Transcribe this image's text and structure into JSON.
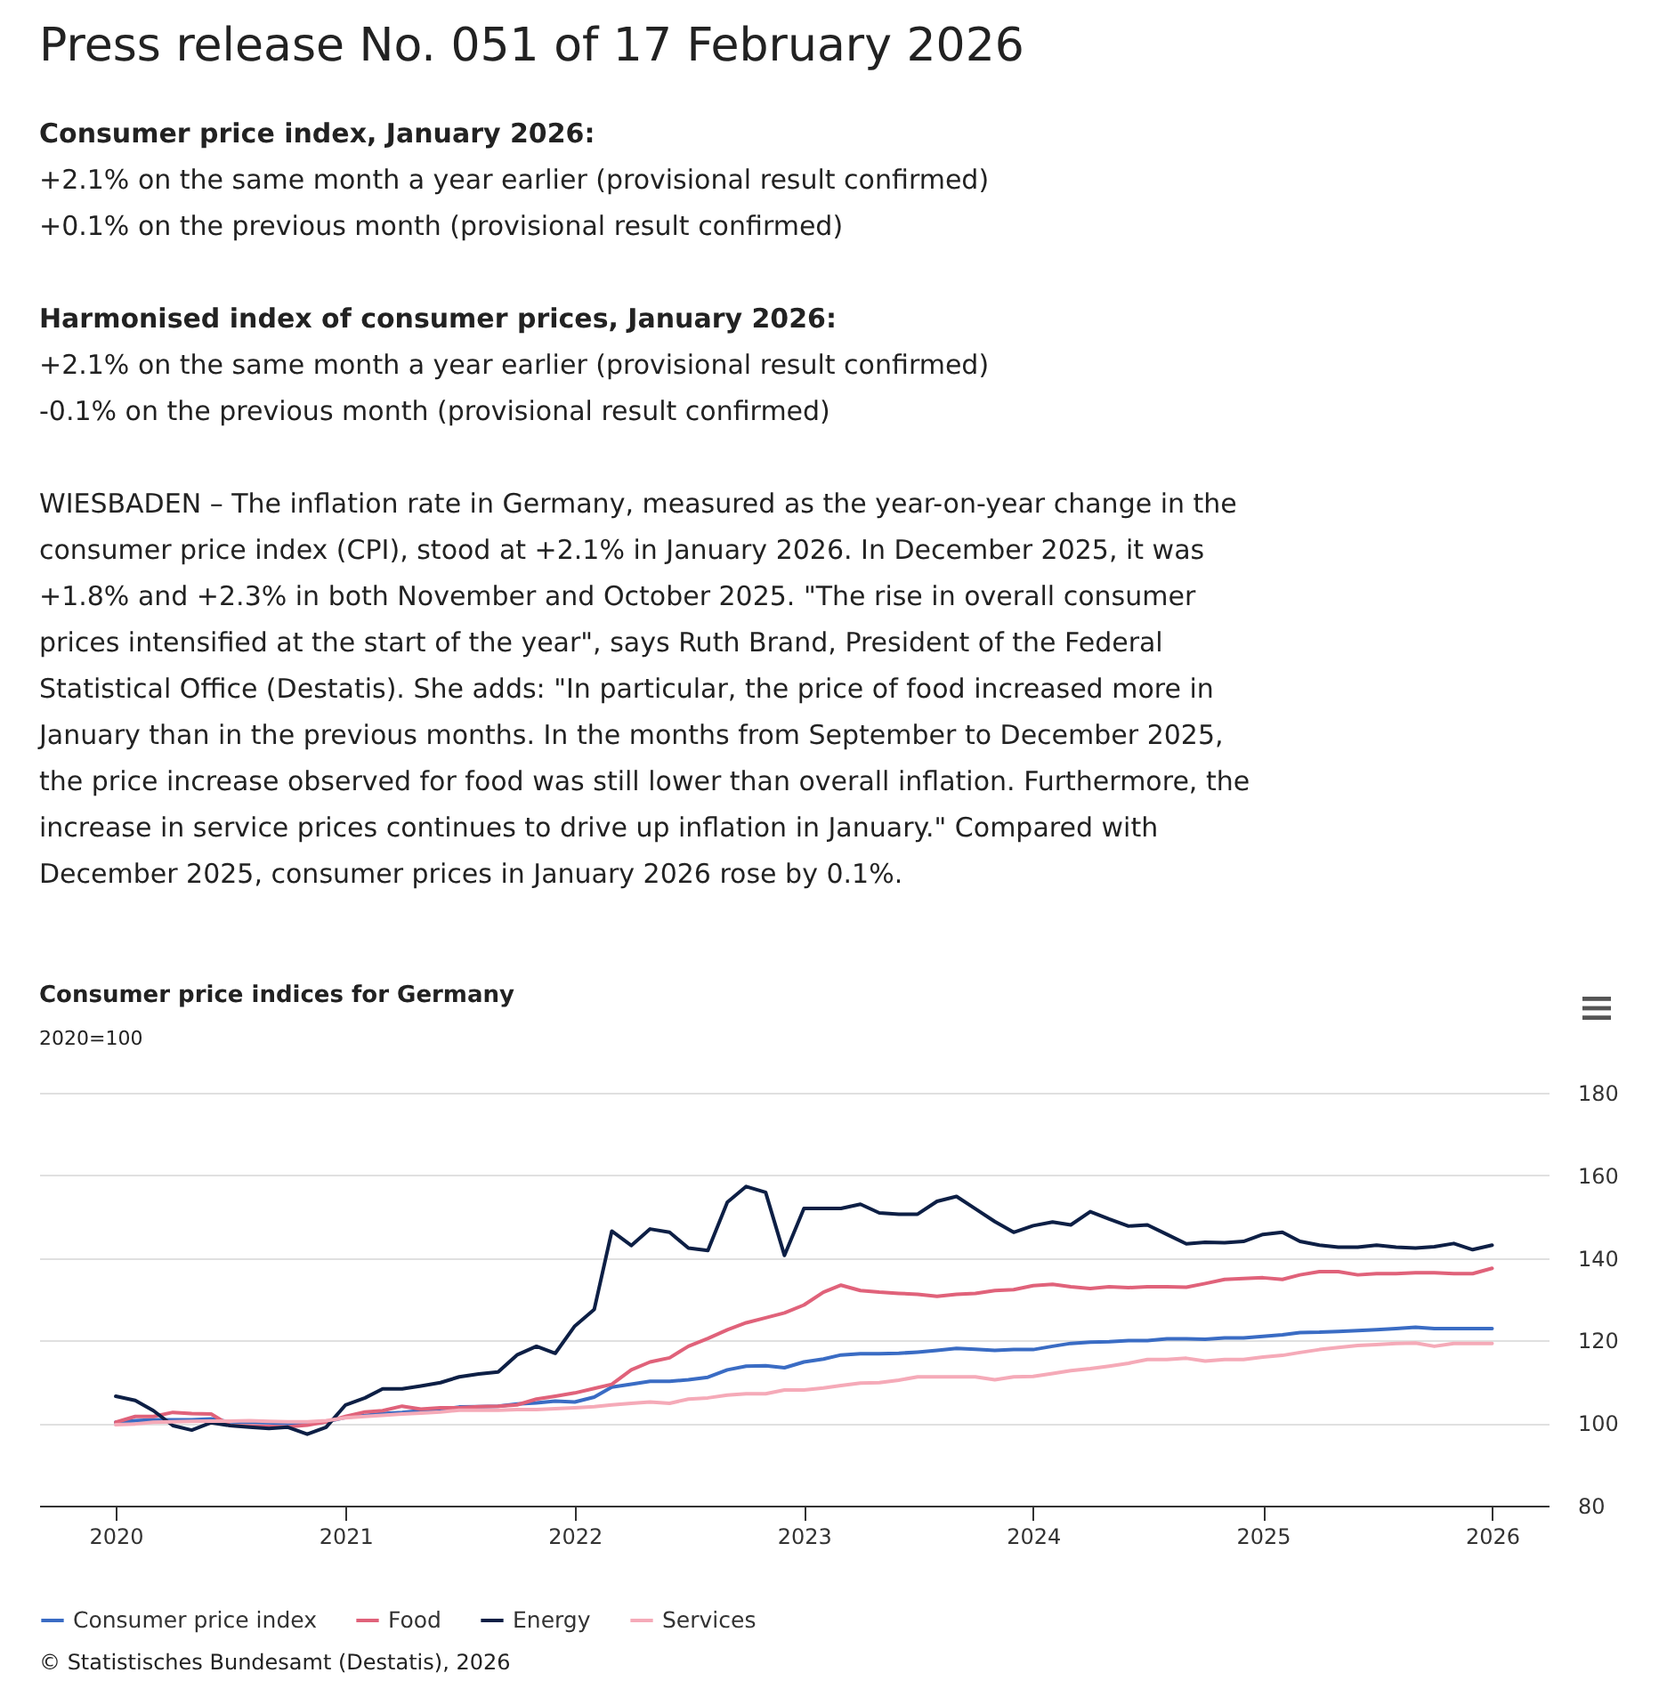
{
  "chart_data": {
    "type": "line",
    "title": "Consumer price indices for Germany",
    "subtitle": "2020=100",
    "annotations": [
      "Press release No. 051 of 17 February 2026",
      "Consumer price index, January 2026:",
      "+2.1% on the same month a year earlier (provisional result confirmed)",
      "+0.1% on the previous month (provisional result confirmed)",
      "Harmonised index of consumer prices, January 2026:",
      "+2.1% on the same month a year earlier (provisional result confirmed)",
      "-0.1% on the previous month (provisional result confirmed)",
      "WIESBADEN – The inflation rate in Germany, measured as the year-on-year change in the consumer price index (CPI), stood at +2.1% in January 2026. In December 2025, it was +1.8% and +2.3% in both November and October 2025. \"The rise in overall consumer prices intensified at the start of the year\", says Ruth Brand, President of the Federal Statistical Office (Destatis). She adds: \"In particular, the price of food increased more in January than in the previous months. In the months from September to December 2025, the price increase observed for food was still lower than overall inflation. Furthermore, the increase in service prices continues to drive up inflation in January.\" Compared with December 2025, consumer prices in January 2026 rose by 0.1%.",
      "© Statistisches Bundesamt (Destatis), 2026"
    ],
    "x": [
      "2020-01",
      "2020-02",
      "2020-03",
      "2020-04",
      "2020-05",
      "2020-06",
      "2020-07",
      "2020-08",
      "2020-09",
      "2020-10",
      "2020-11",
      "2020-12",
      "2021-01",
      "2021-02",
      "2021-03",
      "2021-04",
      "2021-05",
      "2021-06",
      "2021-07",
      "2021-08",
      "2021-09",
      "2021-10",
      "2021-11",
      "2021-12",
      "2022-01",
      "2022-02",
      "2022-03",
      "2022-04",
      "2022-05",
      "2022-06",
      "2022-07",
      "2022-08",
      "2022-09",
      "2022-10",
      "2022-11",
      "2022-12",
      "2023-01",
      "2023-02",
      "2023-03",
      "2023-04",
      "2023-05",
      "2023-06",
      "2023-07",
      "2023-08",
      "2023-09",
      "2023-10",
      "2023-11",
      "2023-12",
      "2024-01",
      "2024-02",
      "2024-03",
      "2024-04",
      "2024-05",
      "2024-06",
      "2024-07",
      "2024-08",
      "2024-09",
      "2024-10",
      "2024-11",
      "2024-12",
      "2025-01",
      "2025-02",
      "2025-03",
      "2025-04",
      "2025-05",
      "2025-06",
      "2025-07",
      "2025-08",
      "2025-09",
      "2025-10",
      "2025-11",
      "2025-12",
      "2026-01"
    ],
    "series": [
      {
        "name": "Consumer price index",
        "color": "#3a6cc4",
        "values": [
          100.2,
          100.6,
          100.8,
          100.8,
          100.8,
          101,
          100.3,
          100.2,
          100.1,
          99.9,
          99.8,
          100.3,
          101.4,
          101.8,
          102.3,
          102.6,
          103,
          103.2,
          103.9,
          104,
          104.1,
          104.6,
          104.9,
          105.3,
          105.1,
          106.3,
          108.7,
          109.4,
          110.1,
          110.1,
          110.5,
          111.1,
          112.9,
          113.8,
          113.9,
          113.4,
          114.8,
          115.5,
          116.5,
          116.8,
          116.8,
          116.9,
          117.2,
          117.6,
          118.1,
          117.9,
          117.6,
          117.8,
          117.8,
          118.6,
          119.3,
          119.6,
          119.7,
          120,
          120,
          120.4,
          120.4,
          120.3,
          120.6,
          120.6,
          121,
          121.4,
          121.9,
          122,
          122.2,
          122.4,
          122.6,
          122.9,
          123.2,
          122.9,
          122.9,
          122.9,
          122.9
        ]
      },
      {
        "name": "Food",
        "color": "#e0627a",
        "values": [
          100.2,
          101.6,
          101.6,
          102.6,
          102.3,
          102.2,
          99.4,
          99.3,
          99.2,
          99.1,
          99.5,
          100.3,
          101.6,
          102.7,
          103,
          104.1,
          103.4,
          103.7,
          103.7,
          104,
          104.1,
          104.4,
          105.8,
          106.5,
          107.3,
          108.4,
          109.4,
          112.9,
          114.8,
          115.8,
          118.6,
          120.5,
          122.6,
          124.3,
          125.5,
          126.7,
          128.6,
          131.7,
          133.4,
          132.1,
          131.7,
          131.4,
          131.2,
          130.7,
          131.2,
          131.4,
          132.1,
          132.3,
          133.3,
          133.6,
          133,
          132.6,
          133,
          132.8,
          133,
          133,
          132.9,
          133.8,
          134.8,
          135,
          135.2,
          134.8,
          135.9,
          136.7,
          136.7,
          135.9,
          136.2,
          136.2,
          136.4,
          136.4,
          136.2,
          136.2,
          137.5
        ]
      },
      {
        "name": "Energy",
        "color": "#0d1f45",
        "values": [
          106.5,
          105.5,
          103,
          99.4,
          98.3,
          100.1,
          99.4,
          99,
          98.7,
          99,
          97.3,
          99,
          104.4,
          106.1,
          108.3,
          108.3,
          109,
          109.8,
          111.2,
          111.9,
          112.4,
          116.5,
          118.6,
          116.9,
          123.5,
          127.5,
          146.5,
          143,
          147,
          146.2,
          142.4,
          141.8,
          153.5,
          157.3,
          155.9,
          140.6,
          152,
          152,
          152,
          153,
          150.9,
          150.6,
          150.6,
          153.7,
          154.9,
          151.9,
          148.8,
          146.2,
          147.8,
          148.7,
          148,
          151.2,
          149.4,
          147.7,
          148,
          145.7,
          143.4,
          143.8,
          143.7,
          144,
          145.7,
          146.2,
          144,
          143.1,
          142.6,
          142.6,
          143.1,
          142.6,
          142.4,
          142.7,
          143.5,
          142,
          143.1
        ]
      },
      {
        "name": "Services",
        "color": "#f5aab8",
        "values": [
          99.6,
          99.8,
          100.2,
          100.3,
          100.4,
          100.5,
          100.5,
          100.6,
          100.4,
          100.3,
          100.3,
          100.6,
          101.3,
          101.6,
          101.9,
          102.2,
          102.4,
          102.7,
          103.1,
          103.1,
          103.1,
          103.3,
          103.3,
          103.5,
          103.7,
          104,
          104.4,
          104.8,
          105.1,
          104.8,
          105.8,
          106.1,
          106.8,
          107.1,
          107.1,
          108,
          108,
          108.5,
          109.1,
          109.7,
          109.8,
          110.4,
          111.2,
          111.2,
          111.2,
          111.2,
          110.5,
          111.2,
          111.3,
          112,
          112.7,
          113.2,
          113.8,
          114.5,
          115.4,
          115.4,
          115.7,
          115,
          115.4,
          115.4,
          116,
          116.4,
          117.1,
          117.8,
          118.3,
          118.8,
          119,
          119.3,
          119.4,
          118.6,
          119.3,
          119.3,
          119.3
        ]
      }
    ],
    "xlim": [
      "2019-09",
      "2026-04"
    ],
    "xticks": [
      {
        "value": "2020",
        "label": "2020"
      },
      {
        "value": "2021",
        "label": "2021"
      },
      {
        "value": "2022",
        "label": "2022"
      },
      {
        "value": "2023",
        "label": "2023"
      },
      {
        "value": "2024",
        "label": "2024"
      },
      {
        "value": "2025",
        "label": "2025"
      },
      {
        "value": "2026",
        "label": "2026"
      }
    ],
    "ylim": [
      80,
      180
    ],
    "yticks": [
      80,
      100,
      120,
      140,
      160,
      180
    ],
    "grid": "y",
    "legend": "bottom",
    "marker": "none",
    "line_style": "solid"
  }
}
